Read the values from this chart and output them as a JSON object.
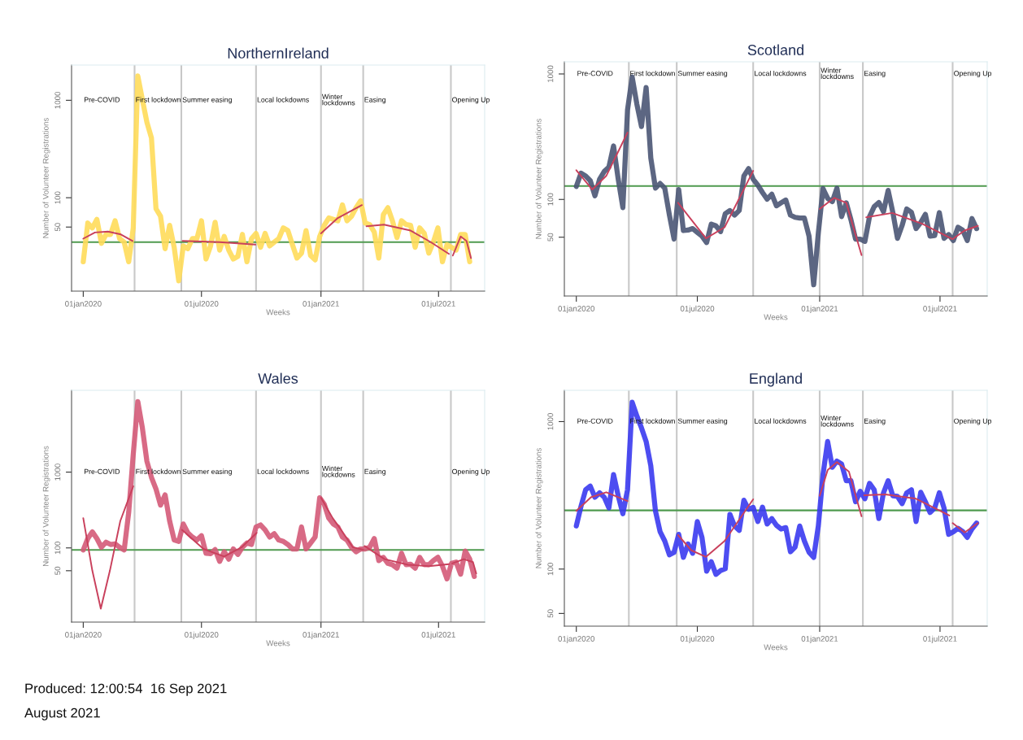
{
  "chart_data": [
    {
      "type": "line",
      "title": "NorthernIreland",
      "xlabel": "Weeks",
      "ylabel": "Number of Volunteer Registrations",
      "log": "y",
      "grid": false,
      "legend": false,
      "xlim": [
        "2019-12-14",
        "2021-09-10"
      ],
      "ylim": [
        11,
        2300
      ],
      "xticks": [
        {
          "value": "2020-01-01",
          "label": "01jan2020"
        },
        {
          "value": "2020-07-01",
          "label": "01jul2020"
        },
        {
          "value": "2021-01-01",
          "label": "01jan2021"
        },
        {
          "value": "2021-07-01",
          "label": "01jul2021"
        }
      ],
      "yticks": [
        50,
        100,
        1000
      ],
      "x": [
        "2020-01-01",
        "2020-01-08",
        "2020-01-15",
        "2020-01-22",
        "2020-01-29",
        "2020-02-05",
        "2020-02-12",
        "2020-02-19",
        "2020-02-26",
        "2020-03-04",
        "2020-03-11",
        "2020-03-18",
        "2020-03-25",
        "2020-04-01",
        "2020-04-08",
        "2020-04-15",
        "2020-04-22",
        "2020-04-29",
        "2020-05-06",
        "2020-05-13",
        "2020-05-20",
        "2020-05-27",
        "2020-06-03",
        "2020-06-10",
        "2020-06-17",
        "2020-06-24",
        "2020-07-01",
        "2020-07-08",
        "2020-07-15",
        "2020-07-22",
        "2020-07-29",
        "2020-08-05",
        "2020-08-12",
        "2020-08-19",
        "2020-08-26",
        "2020-09-02",
        "2020-09-09",
        "2020-09-16",
        "2020-09-23",
        "2020-09-30",
        "2020-10-07",
        "2020-10-14",
        "2020-10-21",
        "2020-10-28",
        "2020-11-04",
        "2020-11-11",
        "2020-11-18",
        "2020-11-25",
        "2020-12-02",
        "2020-12-09",
        "2020-12-16",
        "2020-12-23",
        "2020-12-30",
        "2021-01-06",
        "2021-01-13",
        "2021-01-20",
        "2021-01-27",
        "2021-02-03",
        "2021-02-10",
        "2021-02-17",
        "2021-02-24",
        "2021-03-03",
        "2021-03-10",
        "2021-03-17",
        "2021-03-24",
        "2021-03-31",
        "2021-04-07",
        "2021-04-14",
        "2021-04-21",
        "2021-04-28",
        "2021-05-05",
        "2021-05-12",
        "2021-05-19",
        "2021-05-26",
        "2021-06-02",
        "2021-06-09",
        "2021-06-16",
        "2021-06-23",
        "2021-06-30",
        "2021-07-07",
        "2021-07-14",
        "2021-07-21",
        "2021-07-28",
        "2021-08-04",
        "2021-08-11",
        "2021-08-18"
      ],
      "series": [
        {
          "color": "#ffdc5a",
          "values": [
            22,
            55,
            49,
            60,
            34,
            42,
            42,
            58,
            38,
            35,
            22,
            49,
            1775,
            1020,
            596,
            411,
            77,
            64.5,
            30,
            52,
            31,
            14,
            32,
            30,
            38,
            38,
            58,
            23.5,
            32,
            56,
            29,
            40,
            29,
            23.5,
            25,
            42,
            22,
            38,
            43,
            31,
            43,
            32,
            35,
            38,
            49,
            46,
            33,
            24,
            27,
            46,
            25.5,
            23,
            40,
            52,
            62,
            60,
            58,
            84.5,
            58,
            64.5,
            79,
            93,
            55,
            53,
            44.5,
            24,
            67,
            79,
            58,
            39,
            58,
            53,
            52,
            31,
            49,
            43,
            27,
            35,
            49,
            22,
            33,
            31,
            29,
            42,
            42,
            22
          ]
        },
        {
          "type": "line",
          "color": "#c9405c",
          "x": [
            "2020-01-01",
            "2020-01-19",
            "2020-02-08",
            "2020-02-28",
            "2020-03-17"
          ],
          "values": [
            38,
            44,
            45,
            42,
            36
          ]
        },
        {
          "type": "line",
          "color": "#c9405c",
          "x": [
            "2020-06-02",
            "2020-07-29",
            "2020-09-22"
          ],
          "values": [
            36,
            35,
            33
          ]
        },
        {
          "type": "line",
          "color": "#c9405c",
          "x": [
            "2021-01-01",
            "2021-01-27",
            "2021-03-05"
          ],
          "values": [
            43,
            62,
            84
          ]
        },
        {
          "type": "line",
          "color": "#c9405c",
          "x": [
            "2021-03-12",
            "2021-04-08",
            "2021-05-19",
            "2021-06-19",
            "2021-07-17"
          ],
          "values": [
            51,
            53,
            46,
            35,
            26.5
          ]
        },
        {
          "type": "line",
          "color": "#c9405c",
          "x": [
            "2021-07-23",
            "2021-08-04",
            "2021-08-13",
            "2021-08-20"
          ],
          "values": [
            25.5,
            40,
            36,
            24
          ]
        }
      ],
      "ref_lines": [
        {
          "axis": "y",
          "value": 35,
          "color": "#4f9a4f"
        },
        {
          "axis": "x",
          "value": "2020-03-20",
          "color": "#c8c8c8"
        },
        {
          "axis": "x",
          "value": "2020-05-31",
          "color": "#c8c8c8"
        },
        {
          "axis": "x",
          "value": "2020-09-23",
          "color": "#c8c8c8"
        },
        {
          "axis": "x",
          "value": "2021-01-01",
          "color": "#c8c8c8"
        },
        {
          "axis": "x",
          "value": "2021-03-07",
          "color": "#c8c8c8"
        },
        {
          "axis": "x",
          "value": "2021-07-20",
          "color": "#c8c8c8"
        }
      ],
      "annotations": [
        "Pre-COVID",
        {
          "text": "First lockdown",
          "x": "2020-03-20",
          "y": 1000
        },
        {
          "text": "Summer easing",
          "x": "2020-05-31",
          "y": 1000
        },
        {
          "text": "Local lockdowns",
          "x": "2020-09-23",
          "y": 1000
        },
        {
          "text": "Winter\nlockdowns",
          "x": "2021-01-01",
          "y": 1000
        },
        {
          "text": "Easing",
          "x": "2021-03-07",
          "y": 1000
        },
        {
          "text": "Opening Up",
          "x": "2021-07-20",
          "y": 1000
        }
      ]
    },
    {
      "type": "line",
      "title": "Scotland",
      "xlabel": "Weeks",
      "ylabel": "Number of Volunteer Registrations",
      "log": "y",
      "grid": false,
      "legend": false,
      "xlim": [
        "2019-12-14",
        "2021-09-10"
      ],
      "ylim": [
        17,
        1250
      ],
      "xticks": [
        {
          "value": "2020-01-01",
          "label": "01jan2020"
        },
        {
          "value": "2020-07-01",
          "label": "01jul2020"
        },
        {
          "value": "2021-01-01",
          "label": "01jan2021"
        },
        {
          "value": "2021-07-01",
          "label": "01jul2021"
        }
      ],
      "yticks": [
        50,
        100,
        1000
      ],
      "x": [
        "2020-01-01",
        "2020-01-08",
        "2020-01-15",
        "2020-01-22",
        "2020-01-29",
        "2020-02-05",
        "2020-02-12",
        "2020-02-19",
        "2020-02-26",
        "2020-03-04",
        "2020-03-11",
        "2020-03-18",
        "2020-03-25",
        "2020-04-01",
        "2020-04-08",
        "2020-04-15",
        "2020-04-22",
        "2020-04-29",
        "2020-05-06",
        "2020-05-13",
        "2020-05-20",
        "2020-05-27",
        "2020-06-03",
        "2020-06-10",
        "2020-06-17",
        "2020-06-24",
        "2020-07-01",
        "2020-07-08",
        "2020-07-15",
        "2020-07-22",
        "2020-07-29",
        "2020-08-05",
        "2020-08-12",
        "2020-08-19",
        "2020-08-26",
        "2020-09-02",
        "2020-09-09",
        "2020-09-16",
        "2020-09-23",
        "2020-09-30",
        "2020-10-07",
        "2020-10-14",
        "2020-10-21",
        "2020-10-28",
        "2020-11-04",
        "2020-11-11",
        "2020-11-18",
        "2020-11-25",
        "2020-12-02",
        "2020-12-09",
        "2020-12-16",
        "2020-12-23",
        "2020-12-30",
        "2021-01-06",
        "2021-01-13",
        "2021-01-20",
        "2021-01-27",
        "2021-02-03",
        "2021-02-10",
        "2021-02-17",
        "2021-02-24",
        "2021-03-03",
        "2021-03-10",
        "2021-03-17",
        "2021-03-24",
        "2021-03-31",
        "2021-04-07",
        "2021-04-14",
        "2021-04-21",
        "2021-04-28",
        "2021-05-05",
        "2021-05-12",
        "2021-05-19",
        "2021-05-26",
        "2021-06-02",
        "2021-06-09",
        "2021-06-16",
        "2021-06-23",
        "2021-06-30",
        "2021-07-07",
        "2021-07-14",
        "2021-07-21",
        "2021-07-28",
        "2021-08-04",
        "2021-08-11",
        "2021-08-18",
        "2021-08-25"
      ],
      "series": [
        {
          "color": "#4a5574",
          "values": [
            127,
            162,
            154,
            141,
            107,
            145,
            167,
            181,
            267,
            145,
            86,
            516,
            946,
            577,
            381,
            780,
            214,
            123,
            134,
            123,
            75,
            48.3,
            120,
            56.5,
            57,
            58.6,
            54.6,
            51,
            45.3,
            63.6,
            61.6,
            55.5,
            77,
            81.6,
            75,
            81.6,
            154,
            176,
            145,
            130,
            113.5,
            100.5,
            110,
            89,
            94,
            99,
            75,
            72,
            71,
            71,
            51,
            20.9,
            54,
            122,
            102,
            96,
            123,
            73,
            94,
            69,
            48.3,
            48.3,
            46.3,
            73,
            87.6,
            94.6,
            80,
            118,
            79,
            49,
            62,
            84,
            79,
            58.6,
            65.5,
            76,
            51,
            51.6,
            78.5,
            49,
            52.5,
            47,
            60,
            57,
            47,
            70.4,
            58.6
          ]
        },
        {
          "type": "line",
          "color": "#c9405c",
          "x": [
            "2020-01-01",
            "2020-01-25",
            "2020-02-15",
            "2020-03-18"
          ],
          "values": [
            171,
            120,
            154,
            341
          ]
        },
        {
          "type": "line",
          "color": "#c9405c",
          "x": [
            "2020-06-02",
            "2020-07-14",
            "2020-08-11",
            "2020-09-23"
          ],
          "values": [
            94,
            49,
            60,
            169
          ]
        },
        {
          "type": "line",
          "color": "#c9405c",
          "x": [
            "2021-01-01",
            "2021-01-23",
            "2021-02-10",
            "2021-03-05"
          ],
          "values": [
            84,
            103,
            94,
            36
          ]
        },
        {
          "type": "line",
          "color": "#c9405c",
          "x": [
            "2021-03-12",
            "2021-04-20",
            "2021-06-04",
            "2021-07-20"
          ],
          "values": [
            72,
            78,
            64,
            48.3
          ]
        },
        {
          "type": "line",
          "color": "#c9405c",
          "x": [
            "2021-07-20",
            "2021-08-07",
            "2021-08-27"
          ],
          "values": [
            48.3,
            56.5,
            61.6
          ]
        }
      ],
      "ref_lines": [
        {
          "axis": "y",
          "value": 128,
          "color": "#4f9a4f"
        },
        {
          "axis": "x",
          "value": "2020-03-20",
          "color": "#c8c8c8"
        },
        {
          "axis": "x",
          "value": "2020-05-31",
          "color": "#c8c8c8"
        },
        {
          "axis": "x",
          "value": "2020-09-23",
          "color": "#c8c8c8"
        },
        {
          "axis": "x",
          "value": "2021-01-01",
          "color": "#c8c8c8"
        },
        {
          "axis": "x",
          "value": "2021-03-07",
          "color": "#c8c8c8"
        },
        {
          "axis": "x",
          "value": "2021-07-20",
          "color": "#c8c8c8"
        }
      ],
      "annotations": [
        "Pre-COVID",
        {
          "text": "First lockdown",
          "x": "2020-03-20",
          "y": 1000
        },
        {
          "text": "Summer easing",
          "x": "2020-05-31",
          "y": 1000
        },
        {
          "text": "Local lockdowns",
          "x": "2020-09-23",
          "y": 1000
        },
        {
          "text": "Winter\nlockdowns",
          "x": "2021-01-01",
          "y": 1000
        },
        {
          "text": "Easing",
          "x": "2021-03-07",
          "y": 1000
        },
        {
          "text": "Opening Up",
          "x": "2021-07-20",
          "y": 1000
        }
      ]
    },
    {
      "type": "line",
      "title": "Wales",
      "xlabel": "Weeks",
      "ylabel": "Number of Volunteer Registrations",
      "log": "y",
      "grid": false,
      "legend": false,
      "xlim": [
        "2019-12-14",
        "2021-09-10"
      ],
      "ylim": [
        10.5,
        12000
      ],
      "xticks": [
        {
          "value": "2020-01-01",
          "label": "01jan2020"
        },
        {
          "value": "2020-07-01",
          "label": "01jul2020"
        },
        {
          "value": "2021-01-01",
          "label": "01jan2021"
        },
        {
          "value": "2021-07-01",
          "label": "01jul2021"
        }
      ],
      "yticks": [
        50,
        100,
        1000
      ],
      "x": [
        "2020-01-01",
        "2020-01-08",
        "2020-01-15",
        "2020-01-22",
        "2020-01-29",
        "2020-02-05",
        "2020-02-12",
        "2020-02-19",
        "2020-02-26",
        "2020-03-04",
        "2020-03-11",
        "2020-03-18",
        "2020-03-25",
        "2020-04-01",
        "2020-04-08",
        "2020-04-15",
        "2020-04-22",
        "2020-04-29",
        "2020-05-06",
        "2020-05-13",
        "2020-05-20",
        "2020-05-27",
        "2020-06-03",
        "2020-06-10",
        "2020-06-17",
        "2020-06-24",
        "2020-07-01",
        "2020-07-08",
        "2020-07-15",
        "2020-07-22",
        "2020-07-29",
        "2020-08-05",
        "2020-08-12",
        "2020-08-19",
        "2020-08-26",
        "2020-09-02",
        "2020-09-09",
        "2020-09-16",
        "2020-09-23",
        "2020-09-30",
        "2020-10-07",
        "2020-10-14",
        "2020-10-21",
        "2020-10-28",
        "2020-11-04",
        "2020-11-11",
        "2020-11-18",
        "2020-11-25",
        "2020-12-02",
        "2020-12-09",
        "2020-12-16",
        "2020-12-23",
        "2020-12-30",
        "2021-01-06",
        "2021-01-13",
        "2021-01-20",
        "2021-01-27",
        "2021-02-03",
        "2021-02-10",
        "2021-02-17",
        "2021-02-24",
        "2021-03-03",
        "2021-03-10",
        "2021-03-17",
        "2021-03-24",
        "2021-03-31",
        "2021-04-07",
        "2021-04-14",
        "2021-04-21",
        "2021-04-28",
        "2021-05-05",
        "2021-05-12",
        "2021-05-19",
        "2021-05-26",
        "2021-06-02",
        "2021-06-09",
        "2021-06-16",
        "2021-06-23",
        "2021-06-30",
        "2021-07-07",
        "2021-07-14",
        "2021-07-21",
        "2021-07-28",
        "2021-08-04",
        "2021-08-11",
        "2021-08-18",
        "2021-08-25"
      ],
      "series": [
        {
          "color": "#d45a78",
          "values": [
            94,
            133,
            163,
            133,
            102,
            119,
            111,
            113,
            102,
            94,
            295,
            1730,
            8530,
            3845,
            1390,
            853,
            598,
            367,
            501,
            226,
            127,
            122,
            207,
            158,
            139,
            127,
            145,
            85,
            84,
            95,
            66.5,
            89,
            71,
            97,
            82,
            102,
            116,
            111,
            189,
            201,
            173,
            139,
            154,
            127,
            122,
            111,
            97,
            97,
            189,
            97,
            116,
            139,
            459,
            378,
            247,
            207,
            189,
            139,
            127,
            102,
            89,
            97,
            97,
            102,
            133,
            68,
            75,
            62.5,
            60,
            54,
            85,
            60,
            61,
            54,
            75,
            60,
            60,
            68,
            75,
            57.5,
            39,
            62.5,
            65,
            45,
            91,
            71,
            42
          ]
        },
        {
          "type": "line",
          "color": "#c9405c",
          "x": [
            "2020-01-01",
            "2020-01-15",
            "2020-01-28",
            "2020-02-11",
            "2020-02-27",
            "2020-03-18"
          ],
          "values": [
            247,
            50,
            15.8,
            50,
            226,
            653
          ]
        },
        {
          "type": "line",
          "color": "#c9405c",
          "x": [
            "2020-06-01",
            "2020-07-04",
            "2020-08-05",
            "2020-09-01",
            "2020-09-24"
          ],
          "values": [
            173,
            97,
            77,
            102,
            158
          ]
        },
        {
          "type": "line",
          "color": "#c9405c",
          "x": [
            "2021-01-01",
            "2021-01-19",
            "2021-02-01",
            "2021-02-19",
            "2021-03-07"
          ],
          "values": [
            459,
            247,
            173,
            102,
            95
          ]
        },
        {
          "type": "line",
          "color": "#c9405c",
          "x": [
            "2021-03-09",
            "2021-04-09",
            "2021-05-15",
            "2021-06-16",
            "2021-07-17"
          ],
          "values": [
            106,
            71,
            60,
            57.5,
            61
          ]
        },
        {
          "type": "line",
          "color": "#c9405c",
          "x": [
            "2021-07-22",
            "2021-08-09",
            "2021-08-23",
            "2021-08-28"
          ],
          "values": [
            62.5,
            71,
            65,
            46
          ]
        }
      ],
      "ref_lines": [
        {
          "axis": "y",
          "value": 94,
          "color": "#4f9a4f"
        },
        {
          "axis": "x",
          "value": "2020-03-20",
          "color": "#c8c8c8"
        },
        {
          "axis": "x",
          "value": "2020-05-31",
          "color": "#c8c8c8"
        },
        {
          "axis": "x",
          "value": "2020-09-23",
          "color": "#c8c8c8"
        },
        {
          "axis": "x",
          "value": "2021-01-01",
          "color": "#c8c8c8"
        },
        {
          "axis": "x",
          "value": "2021-03-07",
          "color": "#c8c8c8"
        },
        {
          "axis": "x",
          "value": "2021-07-20",
          "color": "#c8c8c8"
        }
      ],
      "annotations": [
        "Pre-COVID",
        {
          "text": "First lockdown",
          "x": "2020-03-20",
          "y": 1000
        },
        {
          "text": "Summer easing",
          "x": "2020-05-31",
          "y": 1000
        },
        {
          "text": "Local lockdowns",
          "x": "2020-09-23",
          "y": 1000
        },
        {
          "text": "Winter\nlockdowns",
          "x": "2021-01-01",
          "y": 1000
        },
        {
          "text": "Easing",
          "x": "2021-03-07",
          "y": 1000
        },
        {
          "text": "Opening Up",
          "x": "2021-07-20",
          "y": 1000
        }
      ]
    },
    {
      "type": "line",
      "title": "England",
      "xlabel": "Weeks",
      "ylabel": "Number of Volunteer Registrations",
      "log": "y",
      "grid": false,
      "legend": false,
      "xlim": [
        "2019-12-14",
        "2021-09-10"
      ],
      "ylim": [
        41,
        1630
      ],
      "xticks": [
        {
          "value": "2020-01-01",
          "label": "01jan2020"
        },
        {
          "value": "2020-07-01",
          "label": "01jul2020"
        },
        {
          "value": "2021-01-01",
          "label": "01jan2021"
        },
        {
          "value": "2021-07-01",
          "label": "01jul2021"
        }
      ],
      "yticks": [
        50,
        100,
        1000
      ],
      "x": [
        "2020-01-01",
        "2020-01-08",
        "2020-01-15",
        "2020-01-22",
        "2020-01-29",
        "2020-02-05",
        "2020-02-12",
        "2020-02-19",
        "2020-02-26",
        "2020-03-04",
        "2020-03-11",
        "2020-03-18",
        "2020-03-25",
        "2020-04-01",
        "2020-04-08",
        "2020-04-15",
        "2020-04-22",
        "2020-04-29",
        "2020-05-06",
        "2020-05-13",
        "2020-05-20",
        "2020-05-27",
        "2020-06-03",
        "2020-06-10",
        "2020-06-17",
        "2020-06-24",
        "2020-07-01",
        "2020-07-08",
        "2020-07-15",
        "2020-07-22",
        "2020-07-29",
        "2020-08-05",
        "2020-08-12",
        "2020-08-19",
        "2020-08-26",
        "2020-09-02",
        "2020-09-09",
        "2020-09-16",
        "2020-09-23",
        "2020-09-30",
        "2020-10-07",
        "2020-10-14",
        "2020-10-21",
        "2020-10-28",
        "2020-11-04",
        "2020-11-11",
        "2020-11-18",
        "2020-11-25",
        "2020-12-02",
        "2020-12-09",
        "2020-12-16",
        "2020-12-23",
        "2020-12-30",
        "2021-01-06",
        "2021-01-13",
        "2021-01-20",
        "2021-01-27",
        "2021-02-03",
        "2021-02-10",
        "2021-02-17",
        "2021-02-24",
        "2021-03-03",
        "2021-03-10",
        "2021-03-17",
        "2021-03-24",
        "2021-03-31",
        "2021-04-07",
        "2021-04-14",
        "2021-04-21",
        "2021-04-28",
        "2021-05-05",
        "2021-05-12",
        "2021-05-19",
        "2021-05-26",
        "2021-06-02",
        "2021-06-09",
        "2021-06-16",
        "2021-06-23",
        "2021-06-30",
        "2021-07-07",
        "2021-07-14",
        "2021-07-21",
        "2021-07-28",
        "2021-08-04",
        "2021-08-11",
        "2021-08-18",
        "2021-08-25"
      ],
      "series": [
        {
          "color": "#3a3af0",
          "values": [
            196,
            266,
            345,
            365,
            307,
            329,
            307,
            260,
            437,
            314,
            237,
            345,
            1352,
            1094,
            906,
            733,
            502,
            248,
            179,
            155,
            125,
            130,
            172,
            120,
            148,
            128,
            210,
            164,
            96.8,
            112,
            92,
            97.7,
            100.5,
            235,
            196,
            183,
            293,
            254,
            262,
            210,
            263,
            202,
            220,
            198,
            187,
            191,
            131,
            141,
            196,
            155,
            130,
            120,
            196,
            437,
            733,
            490,
            540,
            515,
            397,
            397,
            286,
            337,
            300,
            381,
            345,
            220,
            329,
            397,
            314,
            311,
            278,
            329,
            345,
            210,
            332,
            286,
            242,
            260,
            329,
            260,
            172,
            179,
            189,
            180,
            164,
            187,
            205
          ]
        },
        {
          "type": "line",
          "color": "#c9405c",
          "x": [
            "2020-01-01",
            "2020-01-23",
            "2020-02-15",
            "2020-03-18"
          ],
          "values": [
            248,
            307,
            332,
            289
          ]
        },
        {
          "type": "line",
          "color": "#c9405c",
          "x": [
            "2020-06-02",
            "2020-06-22",
            "2020-07-14",
            "2020-08-11",
            "2020-09-23"
          ],
          "values": [
            170,
            134,
            121,
            155,
            297
          ]
        },
        {
          "type": "line",
          "color": "#c9405c",
          "x": [
            "2021-01-01",
            "2021-01-13",
            "2021-01-27",
            "2021-02-14",
            "2021-03-05"
          ],
          "values": [
            314,
            469,
            531,
            458,
            228
          ]
        },
        {
          "type": "line",
          "color": "#c9405c",
          "x": [
            "2021-03-09",
            "2021-04-10",
            "2021-05-26",
            "2021-07-15"
          ],
          "values": [
            317,
            321,
            300,
            231
          ]
        },
        {
          "type": "line",
          "color": "#c9405c",
          "x": [
            "2021-07-20",
            "2021-08-07",
            "2021-08-27"
          ],
          "values": [
            205,
            177,
            205
          ]
        }
      ],
      "ref_lines": [
        {
          "axis": "y",
          "value": 250,
          "color": "#4f9a4f"
        },
        {
          "axis": "x",
          "value": "2020-03-20",
          "color": "#c8c8c8"
        },
        {
          "axis": "x",
          "value": "2020-05-31",
          "color": "#c8c8c8"
        },
        {
          "axis": "x",
          "value": "2020-09-23",
          "color": "#c8c8c8"
        },
        {
          "axis": "x",
          "value": "2021-01-01",
          "color": "#c8c8c8"
        },
        {
          "axis": "x",
          "value": "2021-03-07",
          "color": "#c8c8c8"
        },
        {
          "axis": "x",
          "value": "2021-07-20",
          "color": "#c8c8c8"
        }
      ],
      "annotations": [
        "Pre-COVID",
        {
          "text": "First lockdown",
          "x": "2020-03-20",
          "y": 1000
        },
        {
          "text": "Summer easing",
          "x": "2020-05-31",
          "y": 1000
        },
        {
          "text": "Local lockdowns",
          "x": "2020-09-23",
          "y": 1000
        },
        {
          "text": "Winter\nlockdowns",
          "x": "2021-01-01",
          "y": 1000
        },
        {
          "text": "Easing",
          "x": "2021-03-07",
          "y": 1000
        },
        {
          "text": "Opening Up",
          "x": "2021-07-20",
          "y": 1000
        },
        "Produced: 12:00:54  16 Sep 2021",
        "August 2021"
      ]
    }
  ]
}
